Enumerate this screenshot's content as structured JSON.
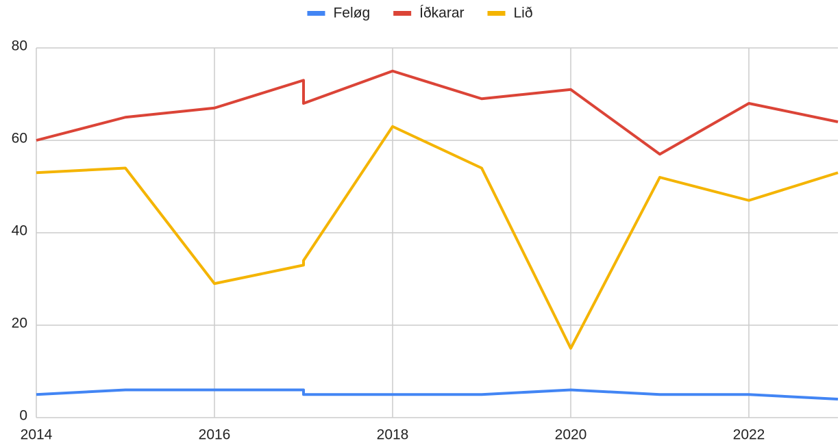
{
  "chart_data": {
    "type": "line",
    "x": [
      2014,
      2015,
      2016,
      2017,
      2017,
      2018,
      2019,
      2020,
      2021,
      2022,
      2023
    ],
    "series": [
      {
        "name": "Feløg",
        "color": "#4285f4",
        "values": [
          5,
          6,
          6,
          6,
          5,
          5,
          5,
          6,
          5,
          5,
          4
        ]
      },
      {
        "name": "Íðkarar",
        "color": "#db4437",
        "values": [
          60,
          65,
          67,
          73,
          68,
          75,
          69,
          71,
          57,
          68,
          64
        ]
      },
      {
        "name": "Lið",
        "color": "#f4b400",
        "values": [
          53,
          54,
          29,
          33,
          34,
          63,
          54,
          15,
          52,
          47,
          53
        ]
      }
    ],
    "xlim": [
      2014,
      2023
    ],
    "xticks": [
      2014,
      2016,
      2018,
      2020,
      2022
    ],
    "ylim": [
      0,
      80
    ],
    "yticks": [
      0,
      20,
      40,
      60,
      80
    ],
    "grid": true,
    "legend": "top"
  }
}
